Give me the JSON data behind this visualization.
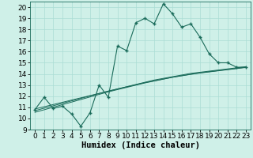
{
  "title": "",
  "xlabel": "Humidex (Indice chaleur)",
  "ylabel": "",
  "bg_color": "#cff0e8",
  "line_color": "#1a6b5a",
  "grid_color": "#aaddd4",
  "xlim": [
    -0.5,
    23.5
  ],
  "ylim": [
    9,
    20.5
  ],
  "xticks": [
    0,
    1,
    2,
    3,
    4,
    5,
    6,
    7,
    8,
    9,
    10,
    11,
    12,
    13,
    14,
    15,
    16,
    17,
    18,
    19,
    20,
    21,
    22,
    23
  ],
  "yticks": [
    9,
    10,
    11,
    12,
    13,
    14,
    15,
    16,
    17,
    18,
    19,
    20
  ],
  "main_y": [
    10.8,
    11.9,
    10.9,
    11.1,
    10.4,
    9.3,
    10.5,
    13.0,
    11.9,
    16.5,
    16.1,
    18.6,
    19.0,
    18.5,
    20.3,
    19.4,
    18.2,
    18.5,
    17.3,
    15.8,
    15.0,
    15.0,
    14.6,
    14.6
  ],
  "reg1_y": [
    10.85,
    11.05,
    11.25,
    11.45,
    11.65,
    11.85,
    12.05,
    12.25,
    12.45,
    12.65,
    12.85,
    13.05,
    13.25,
    13.45,
    13.6,
    13.75,
    13.9,
    14.05,
    14.15,
    14.25,
    14.35,
    14.45,
    14.55,
    14.65
  ],
  "reg2_y": [
    10.7,
    10.92,
    11.14,
    11.36,
    11.58,
    11.8,
    12.02,
    12.24,
    12.46,
    12.65,
    12.84,
    13.03,
    13.22,
    13.38,
    13.54,
    13.7,
    13.83,
    13.96,
    14.08,
    14.18,
    14.28,
    14.38,
    14.48,
    14.58
  ],
  "reg3_y": [
    10.55,
    10.78,
    11.01,
    11.24,
    11.47,
    11.7,
    11.93,
    12.16,
    12.39,
    12.59,
    12.79,
    12.99,
    13.19,
    13.36,
    13.53,
    13.7,
    13.84,
    13.98,
    14.1,
    14.2,
    14.3,
    14.4,
    14.5,
    14.6
  ],
  "x": [
    0,
    1,
    2,
    3,
    4,
    5,
    6,
    7,
    8,
    9,
    10,
    11,
    12,
    13,
    14,
    15,
    16,
    17,
    18,
    19,
    20,
    21,
    22,
    23
  ],
  "marker_size": 3.5,
  "xlabel_fontsize": 7.5,
  "tick_fontsize": 6.5
}
